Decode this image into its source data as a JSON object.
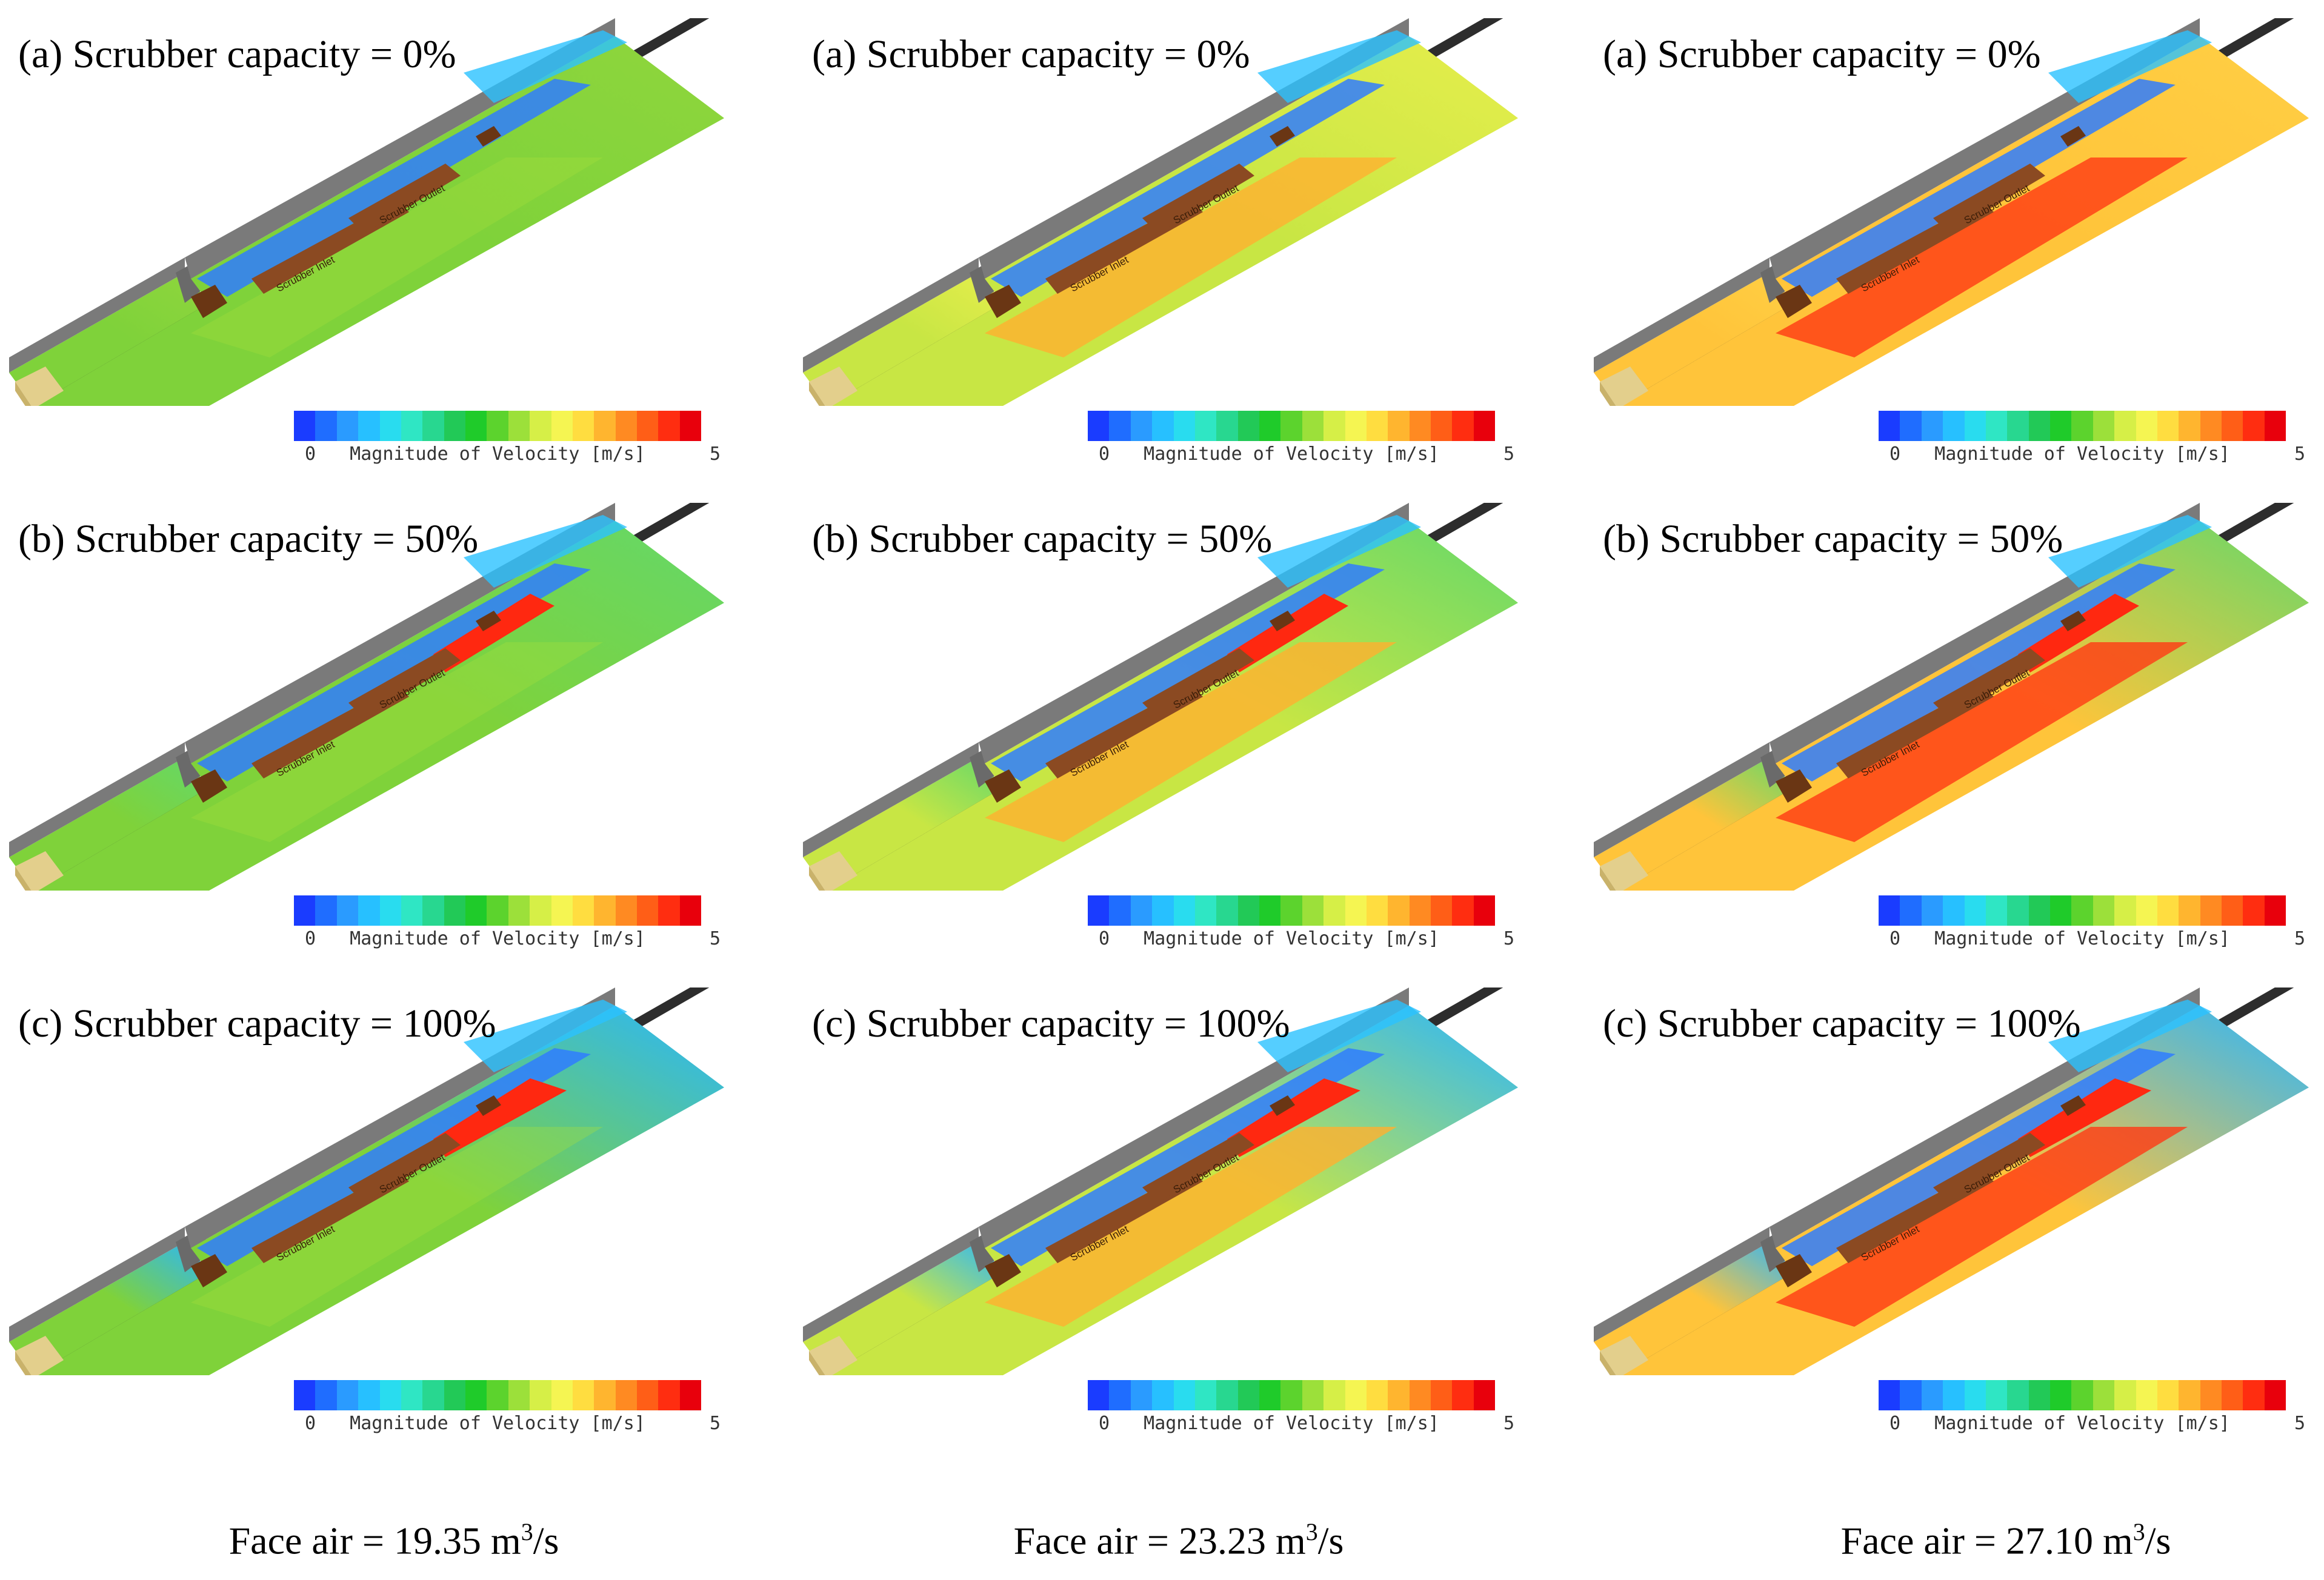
{
  "columns": [
    {
      "face_air_prefix": "Face air = 19.35 m",
      "face_air_sup": "3",
      "face_air_suffix": "/s"
    },
    {
      "face_air_prefix": "Face air = 23.23 m",
      "face_air_sup": "3",
      "face_air_suffix": "/s"
    },
    {
      "face_air_prefix": "Face air = 27.10 m",
      "face_air_sup": "3",
      "face_air_suffix": "/s"
    }
  ],
  "rows": [
    {
      "title": "(a) Scrubber capacity = 0%"
    },
    {
      "title": "(b) Scrubber capacity = 50%"
    },
    {
      "title": "(c) Scrubber capacity = 100%"
    }
  ],
  "labels": {
    "scrubber_inlet": "Scrubber Inlet",
    "scrubber_outlet": "Scrubber Outlet"
  },
  "colorbar": {
    "title": "Magnitude of Velocity [m/s]",
    "min": "0",
    "max": "5",
    "colors": [
      "#1a3cff",
      "#1f6dff",
      "#2a9bff",
      "#27c0ff",
      "#29dcef",
      "#2fe6c4",
      "#28d790",
      "#22c957",
      "#1fcb2a",
      "#5cd32d",
      "#9ce03a",
      "#d6ef47",
      "#f5f552",
      "#ffdd40",
      "#ffb52f",
      "#ff8a22",
      "#ff5e17",
      "#ff2d10",
      "#e8000c"
    ]
  },
  "scene_colors": {
    "wall": "#7a7a7a",
    "floor_shadow": "#2d2d2d",
    "rib": "#6a6a6a",
    "miner": "#8b4a22",
    "miner_dark": "#6a3614",
    "face_block": "#e3cf8c"
  }
}
